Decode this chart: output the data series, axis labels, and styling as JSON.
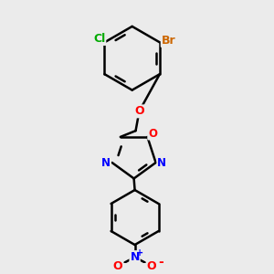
{
  "bg_color": "#ebebeb",
  "bond_color": "#000000",
  "bond_width": 1.8,
  "atom_colors": {
    "Cl": "#00aa00",
    "Br": "#cc6600",
    "O": "#ff0000",
    "N": "#0000ff",
    "O_nitro": "#ff0000"
  }
}
